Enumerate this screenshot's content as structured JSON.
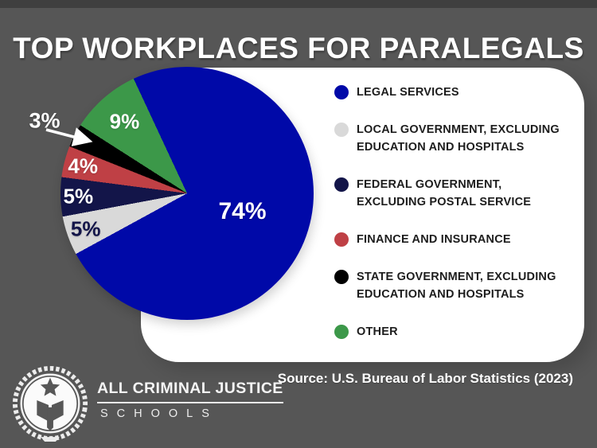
{
  "title": "TOP WORKPLACES FOR PARALEGALS",
  "chart_data": {
    "type": "pie",
    "title": "TOP WORKPLACES FOR PARALEGALS",
    "start_angle_deg": 115,
    "direction": "clockwise",
    "legend_position": "right",
    "slices": [
      {
        "label": "LEGAL SERVICES",
        "value": 74,
        "data_label": "74%",
        "color": "#0009a8",
        "label_color": "#ffffff"
      },
      {
        "label": "LOCAL GOVERNMENT, EXCLUDING EDUCATION AND HOSPITALS",
        "value": 5,
        "data_label": "5%",
        "color": "#d9d9d9",
        "label_color": "#131549"
      },
      {
        "label": "FEDERAL GOVERNMENT, EXCLUDING POSTAL SERVICE",
        "value": 5,
        "data_label": "5%",
        "color": "#131549",
        "label_color": "#ffffff"
      },
      {
        "label": "FINANCE AND INSURANCE",
        "value": 4,
        "data_label": "4%",
        "color": "#bf4045",
        "label_color": "#ffffff"
      },
      {
        "label": "STATE GOVERNMENT, EXCLUDING EDUCATION AND HOSPITALS",
        "value": 3,
        "data_label": "3%",
        "color": "#000000",
        "label_color": "#ffffff",
        "callout": true
      },
      {
        "label": "OTHER",
        "value": 9,
        "data_label": "9%",
        "color": "#3c9849",
        "label_color": "#ffffff"
      }
    ]
  },
  "source": "Source: U.S. Bureau of Labor Statistics (2023)",
  "logo": {
    "line1": "ALL CRIMINAL JUSTICE",
    "line2": "SCHOOLS"
  },
  "colors": {
    "background": "#565656",
    "top_border": "#3f3f3f",
    "panel": "#ffffff",
    "title_text": "#ffffff",
    "legend_text": "#1d1d1d",
    "source_text": "#ffffff"
  }
}
